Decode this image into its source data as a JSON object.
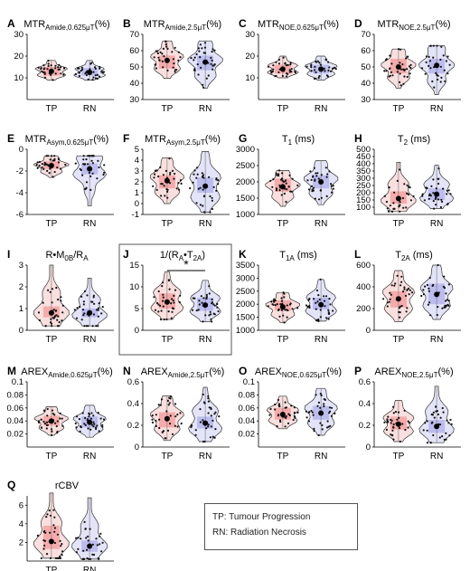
{
  "legend": {
    "tp": "TP: Tumour Progression",
    "rn": "RN: Radiation Necrosis"
  },
  "colors": {
    "tp": "#f2a3a3",
    "rn": "#b3b3ee",
    "tp_box": "#f08080",
    "rn_box": "#9a9ae6",
    "outline": "#333333",
    "frame": "#555555"
  },
  "chart_data": [
    {
      "label": "A",
      "type": "violin",
      "title": "MTR",
      "sub": "Amide,0.625μT",
      "unit": "(%)",
      "categories": [
        "TP",
        "RN"
      ],
      "ylim": [
        0,
        30
      ],
      "yticks": [
        10,
        20,
        30
      ],
      "series": [
        {
          "name": "TP",
          "median": 13,
          "q1": 11,
          "q3": 15,
          "min": 9,
          "max": 18
        },
        {
          "name": "RN",
          "median": 12.5,
          "q1": 11,
          "q3": 14.5,
          "min": 9,
          "max": 18
        }
      ]
    },
    {
      "label": "B",
      "type": "violin",
      "title": "MTR",
      "sub": "Amide,2.5μT",
      "unit": "(%)",
      "categories": [
        "TP",
        "RN"
      ],
      "ylim": [
        30,
        70
      ],
      "yticks": [
        30,
        40,
        50,
        60,
        70
      ],
      "series": [
        {
          "name": "TP",
          "median": 54,
          "q1": 49,
          "q3": 57,
          "min": 43,
          "max": 66
        },
        {
          "name": "RN",
          "median": 53,
          "q1": 48,
          "q3": 57,
          "min": 37,
          "max": 66
        }
      ]
    },
    {
      "label": "C",
      "type": "violin",
      "title": "MTR",
      "sub": "NOE,0.625μT",
      "unit": "(%)",
      "categories": [
        "TP",
        "RN"
      ],
      "ylim": [
        0,
        30
      ],
      "yticks": [
        10,
        20,
        30
      ],
      "series": [
        {
          "name": "TP",
          "median": 14,
          "q1": 12,
          "q3": 16,
          "min": 10,
          "max": 20
        },
        {
          "name": "RN",
          "median": 14,
          "q1": 12,
          "q3": 16,
          "min": 9,
          "max": 20
        }
      ]
    },
    {
      "label": "D",
      "type": "violin",
      "title": "MTR",
      "sub": "NOE,2.5μT",
      "unit": "(%)",
      "categories": [
        "TP",
        "RN"
      ],
      "ylim": [
        30,
        70
      ],
      "yticks": [
        30,
        40,
        50,
        60,
        70
      ],
      "series": [
        {
          "name": "TP",
          "median": 50,
          "q1": 46,
          "q3": 55,
          "min": 37,
          "max": 61
        },
        {
          "name": "RN",
          "median": 51,
          "q1": 46,
          "q3": 55,
          "min": 33,
          "max": 63
        }
      ]
    },
    {
      "label": "E",
      "type": "violin",
      "title": "MTR",
      "sub": "Asym,0.625μT",
      "unit": "(%)",
      "categories": [
        "TP",
        "RN"
      ],
      "ylim": [
        -6,
        0
      ],
      "yticks": [
        -6,
        -4,
        -2,
        0
      ],
      "series": [
        {
          "name": "TP",
          "median": -1.5,
          "q1": -1.8,
          "q3": -1.1,
          "min": -2.6,
          "max": -0.6
        },
        {
          "name": "RN",
          "median": -1.8,
          "q1": -2.3,
          "q3": -1.3,
          "min": -5.2,
          "max": -0.6
        }
      ]
    },
    {
      "label": "F",
      "type": "violin",
      "title": "MTR",
      "sub": "Asym,2.5μT",
      "unit": "(%)",
      "categories": [
        "TP",
        "RN"
      ],
      "ylim": [
        -1,
        5
      ],
      "yticks": [
        -1,
        0,
        1,
        2,
        3,
        4,
        5
      ],
      "series": [
        {
          "name": "TP",
          "median": 2.1,
          "q1": 1.4,
          "q3": 2.6,
          "min": 0,
          "max": 4.2
        },
        {
          "name": "RN",
          "median": 1.6,
          "q1": 1.0,
          "q3": 2.4,
          "min": -0.8,
          "max": 4.8
        }
      ]
    },
    {
      "label": "G",
      "type": "violin",
      "title": "T",
      "sub": "1",
      "unit": " (ms)",
      "categories": [
        "TP",
        "RN"
      ],
      "ylim": [
        1000,
        3000
      ],
      "yticks": [
        1000,
        1500,
        2000,
        2500,
        3000
      ],
      "series": [
        {
          "name": "TP",
          "median": 1850,
          "q1": 1700,
          "q3": 2100,
          "min": 1250,
          "max": 2350
        },
        {
          "name": "RN",
          "median": 2000,
          "q1": 1800,
          "q3": 2200,
          "min": 1300,
          "max": 2650
        }
      ]
    },
    {
      "label": "H",
      "type": "violin",
      "title": "T",
      "sub": "2",
      "unit": " (ms)",
      "categories": [
        "TP",
        "RN"
      ],
      "ylim": [
        50,
        500
      ],
      "yticks": [
        100,
        150,
        200,
        250,
        300,
        350,
        400,
        450,
        500
      ],
      "series": [
        {
          "name": "TP",
          "median": 160,
          "q1": 125,
          "q3": 210,
          "min": 70,
          "max": 410
        },
        {
          "name": "RN",
          "median": 190,
          "q1": 150,
          "q3": 230,
          "min": 90,
          "max": 390
        }
      ]
    },
    {
      "label": "I",
      "type": "violin",
      "title": "R•M",
      "sub": "0B",
      "unit": "/R",
      "sub2": "A",
      "categories": [
        "TP",
        "RN"
      ],
      "ylim": [
        0,
        3
      ],
      "yticks": [
        0,
        1,
        2,
        3
      ],
      "series": [
        {
          "name": "TP",
          "median": 0.8,
          "q1": 0.6,
          "q3": 1.1,
          "min": 0.2,
          "max": 3
        },
        {
          "name": "RN",
          "median": 0.8,
          "q1": 0.6,
          "q3": 1.0,
          "min": 0.2,
          "max": 2.4
        }
      ]
    },
    {
      "label": "J",
      "type": "violin",
      "title": "1/(R",
      "sub": "A",
      "unit": "•T",
      "sub2": "2A",
      "close": ")",
      "categories": [
        "TP",
        "RN"
      ],
      "ylim": [
        0,
        15
      ],
      "yticks": [
        0,
        5,
        10,
        15
      ],
      "significance": "*",
      "series": [
        {
          "name": "TP",
          "median": 6.5,
          "q1": 5,
          "q3": 8.5,
          "min": 2.5,
          "max": 13.5
        },
        {
          "name": "RN",
          "median": 5.8,
          "q1": 4.5,
          "q3": 7.5,
          "min": 2,
          "max": 11.5
        }
      ]
    },
    {
      "label": "K",
      "type": "violin",
      "title": "T",
      "sub": "1A",
      "unit": " (ms)",
      "categories": [
        "TP",
        "RN"
      ],
      "ylim": [
        1000,
        3500
      ],
      "yticks": [
        1000,
        1500,
        2000,
        2500,
        3000,
        3500
      ],
      "series": [
        {
          "name": "TP",
          "median": 1900,
          "q1": 1750,
          "q3": 2150,
          "min": 1300,
          "max": 2450
        },
        {
          "name": "RN",
          "median": 1980,
          "q1": 1800,
          "q3": 2250,
          "min": 1350,
          "max": 2950
        }
      ]
    },
    {
      "label": "L",
      "type": "violin",
      "title": "T",
      "sub": "2A",
      "unit": " (ms)",
      "categories": [
        "TP",
        "RN"
      ],
      "ylim": [
        0,
        600
      ],
      "yticks": [
        0,
        200,
        400,
        600
      ],
      "series": [
        {
          "name": "TP",
          "median": 290,
          "q1": 210,
          "q3": 360,
          "min": 80,
          "max": 550
        },
        {
          "name": "RN",
          "median": 330,
          "q1": 240,
          "q3": 430,
          "min": 100,
          "max": 600
        }
      ]
    },
    {
      "label": "M",
      "type": "violin",
      "title": "AREX",
      "sub": "Amide,0.625μT",
      "unit": "(%)",
      "categories": [
        "TP",
        "RN"
      ],
      "ylim": [
        0,
        0.1
      ],
      "yticks": [
        0.02,
        0.04,
        0.06,
        0.08,
        0.1
      ],
      "series": [
        {
          "name": "TP",
          "median": 0.04,
          "q1": 0.033,
          "q3": 0.048,
          "min": 0.018,
          "max": 0.062
        },
        {
          "name": "RN",
          "median": 0.038,
          "q1": 0.03,
          "q3": 0.047,
          "min": 0.015,
          "max": 0.064
        }
      ]
    },
    {
      "label": "N",
      "type": "violin",
      "title": "AREX",
      "sub": "Amide,2.5μT",
      "unit": "(%)",
      "categories": [
        "TP",
        "RN"
      ],
      "ylim": [
        0,
        0.6
      ],
      "yticks": [
        0,
        0.2,
        0.4,
        0.6
      ],
      "series": [
        {
          "name": "TP",
          "median": 0.26,
          "q1": 0.18,
          "q3": 0.32,
          "min": 0.06,
          "max": 0.47
        },
        {
          "name": "RN",
          "median": 0.22,
          "q1": 0.17,
          "q3": 0.28,
          "min": 0.05,
          "max": 0.55
        }
      ]
    },
    {
      "label": "O",
      "type": "violin",
      "title": "AREX",
      "sub": "NOE,0.625μT",
      "unit": "(%)",
      "categories": [
        "TP",
        "RN"
      ],
      "ylim": [
        0,
        0.1
      ],
      "yticks": [
        0.02,
        0.04,
        0.06,
        0.08,
        0.1
      ],
      "series": [
        {
          "name": "TP",
          "median": 0.05,
          "q1": 0.042,
          "q3": 0.06,
          "min": 0.028,
          "max": 0.078
        },
        {
          "name": "RN",
          "median": 0.052,
          "q1": 0.042,
          "q3": 0.063,
          "min": 0.018,
          "max": 0.09
        }
      ]
    },
    {
      "label": "P",
      "type": "violin",
      "title": "AREX",
      "sub": "NOE,2.5μT",
      "unit": "(%)",
      "categories": [
        "TP",
        "RN"
      ],
      "ylim": [
        0,
        0.6
      ],
      "yticks": [
        0,
        0.2,
        0.4,
        0.6
      ],
      "series": [
        {
          "name": "TP",
          "median": 0.21,
          "q1": 0.16,
          "q3": 0.28,
          "min": 0.05,
          "max": 0.43
        },
        {
          "name": "RN",
          "median": 0.19,
          "q1": 0.13,
          "q3": 0.25,
          "min": 0.04,
          "max": 0.56
        }
      ]
    },
    {
      "label": "Q",
      "type": "violin",
      "title": "rCBV",
      "sub": "",
      "unit": "",
      "categories": [
        "TP",
        "RN"
      ],
      "ylim": [
        0,
        7
      ],
      "yticks": [
        2,
        4,
        6
      ],
      "series": [
        {
          "name": "TP",
          "median": 2.1,
          "q1": 1.3,
          "q3": 3.8,
          "min": 0.3,
          "max": 7.3
        },
        {
          "name": "RN",
          "median": 1.6,
          "q1": 1.0,
          "q3": 2.2,
          "min": 0.2,
          "max": 6.8
        }
      ]
    }
  ]
}
